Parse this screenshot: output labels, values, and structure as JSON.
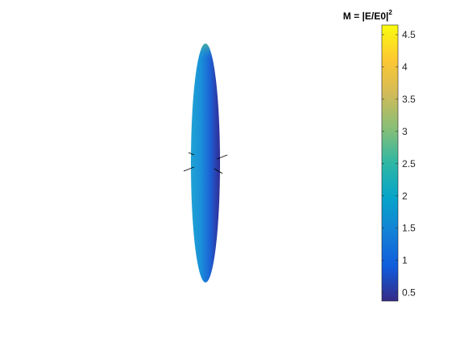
{
  "chart_data": {
    "type": "surface",
    "colormap": "parula",
    "colormap_stops": [
      "#352a87",
      "#0f5cdd",
      "#1481d6",
      "#06a4ca",
      "#2eb7a4",
      "#87bf77",
      "#d1bb59",
      "#fec832",
      "#f9fb0e"
    ],
    "surface": {
      "description_colors": {
        "left_rim": "#1fa3d3",
        "center": "#1a7fd9",
        "right_rim": "#2e2f95",
        "top_tip": "#4ab29a"
      },
      "value_range": [
        0.4,
        1.8
      ]
    },
    "axes_visible": false,
    "colorbar": {
      "title": "M = |E/E0|",
      "title_superscript": "2",
      "location": "right",
      "clim": [
        0.37,
        4.65
      ],
      "ticks": [
        0.5,
        1,
        1.5,
        2,
        2.5,
        3,
        3.5,
        4,
        4.5
      ],
      "tick_labels": [
        "0.5",
        "1",
        "1.5",
        "2",
        "2.5",
        "3",
        "3.5",
        "4",
        "4.5"
      ]
    }
  }
}
